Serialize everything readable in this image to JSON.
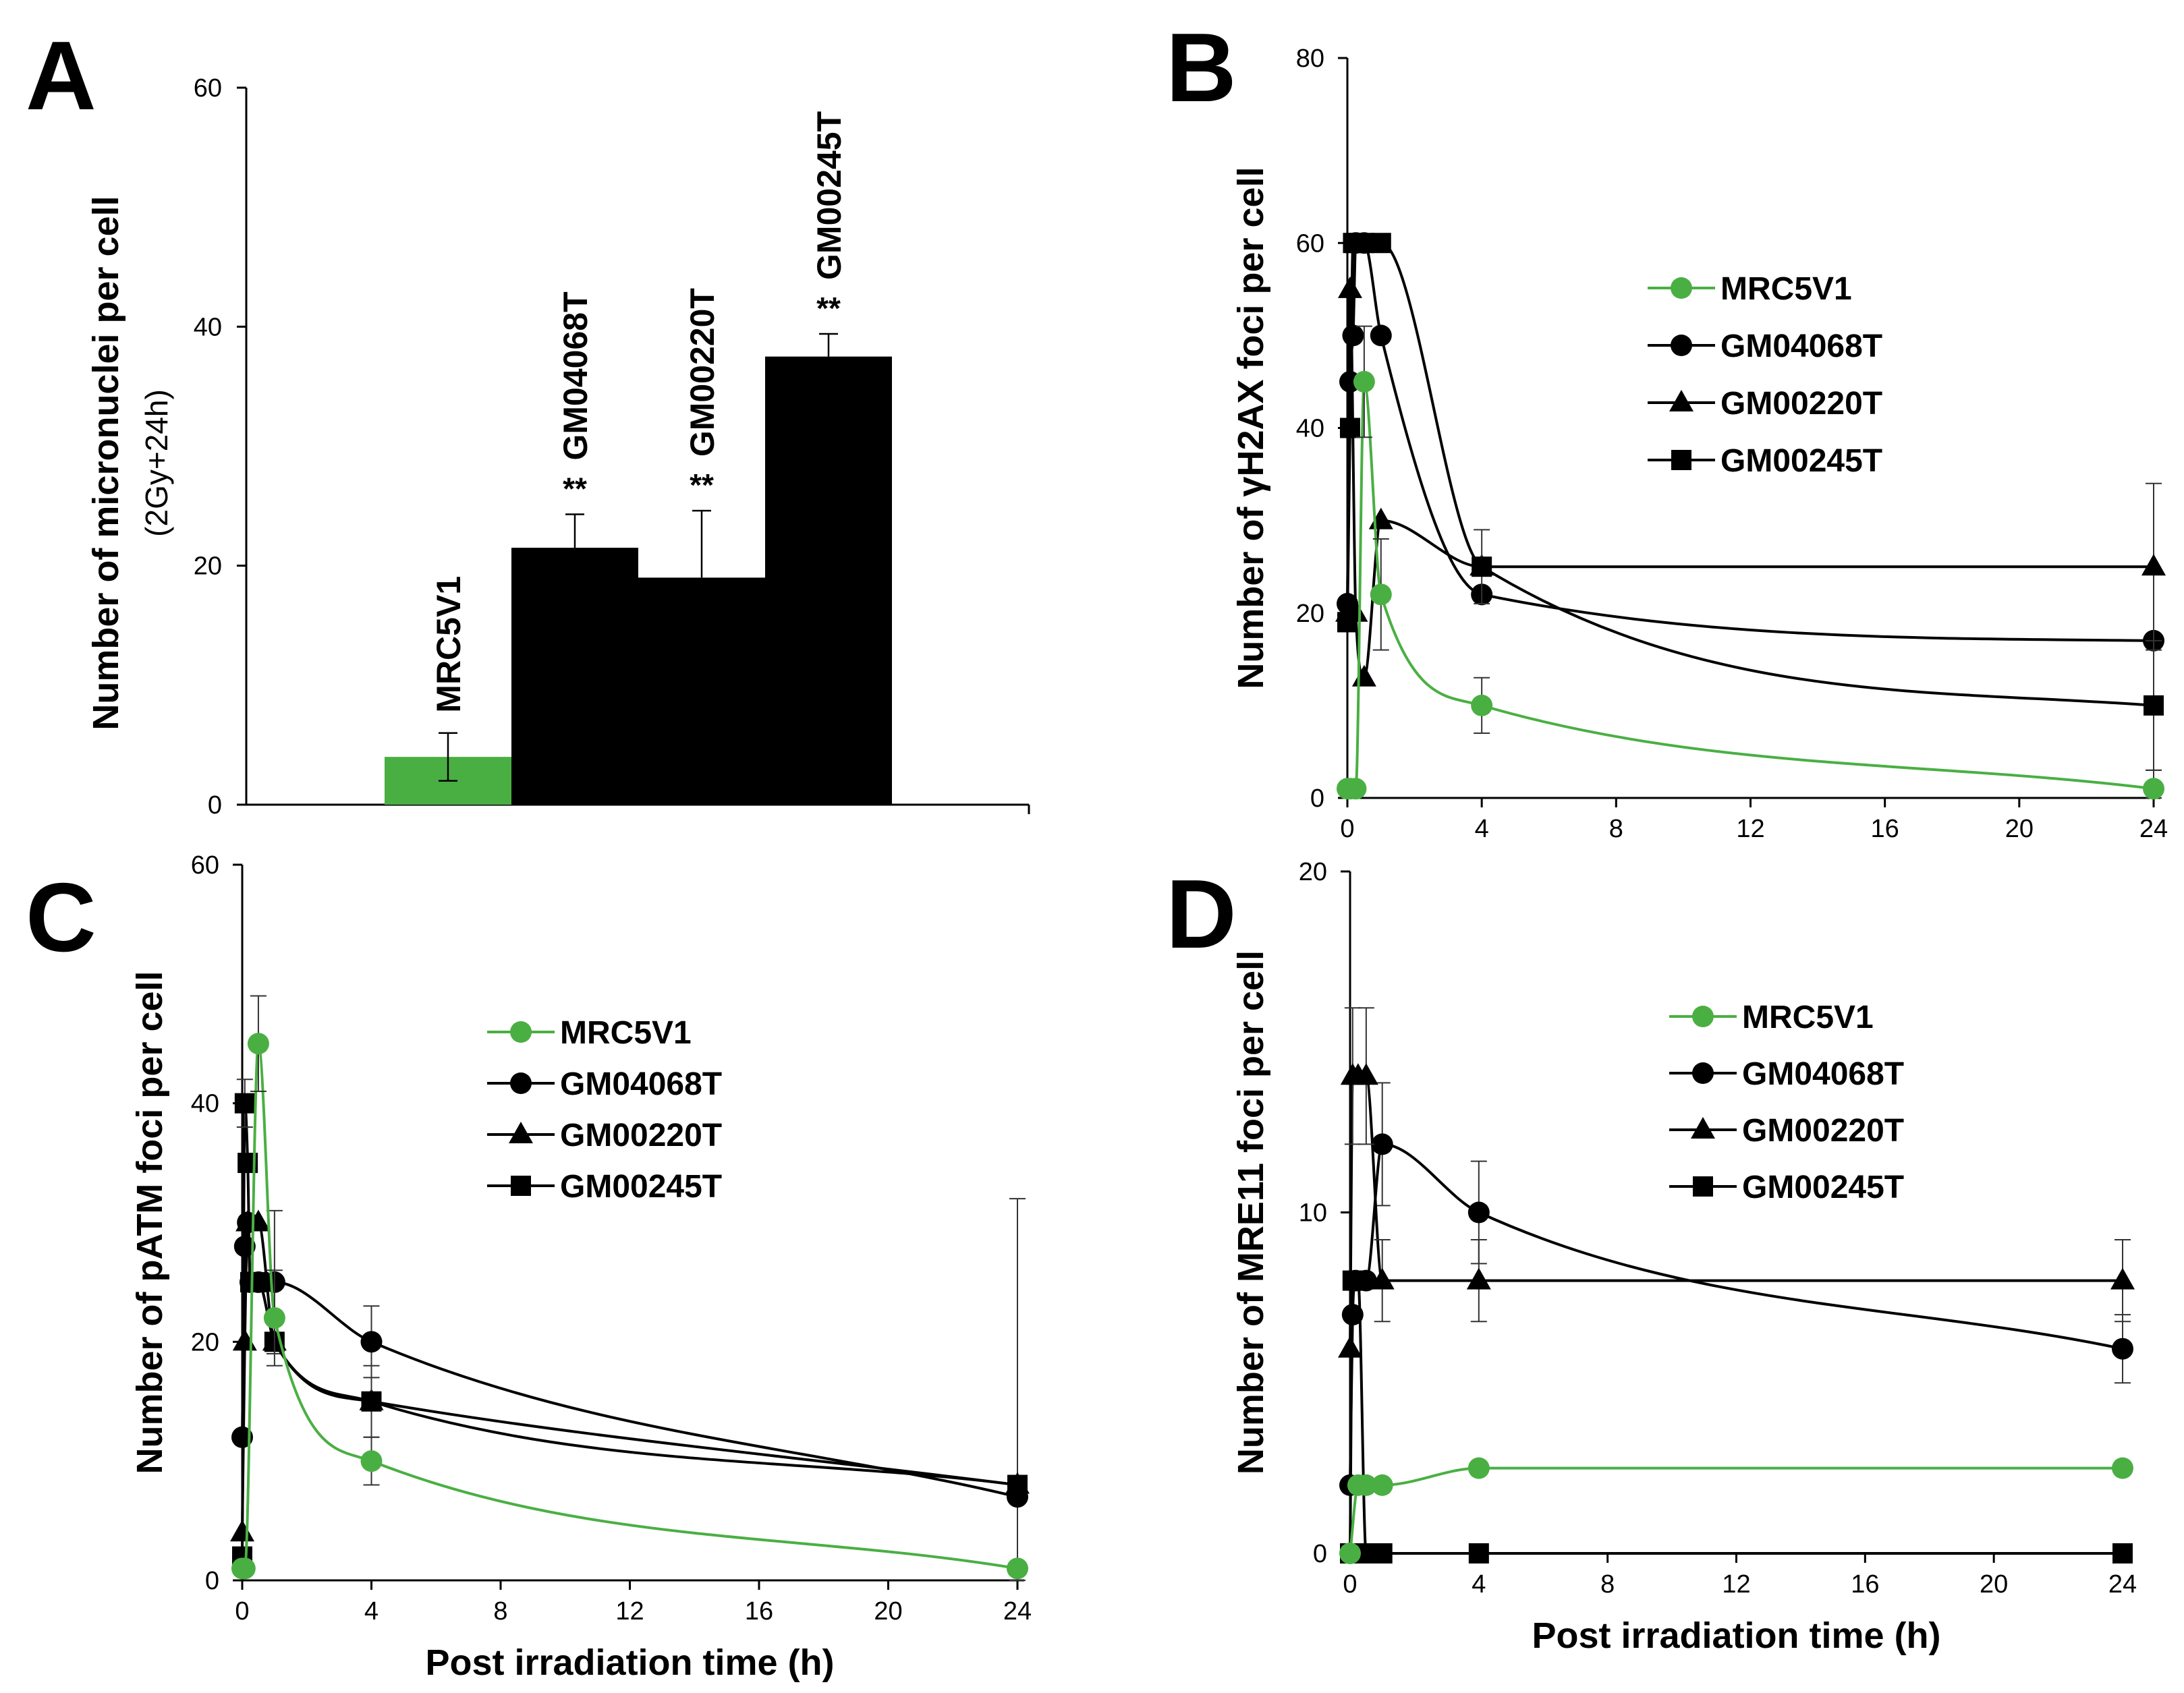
{
  "colors": {
    "green": "#4aaf43",
    "black": "#000000"
  },
  "chart_data": [
    {
      "panel": "A",
      "type": "bar",
      "categories": [
        "MRC5V1",
        "GM04068T",
        "GM00220T",
        "GM00245T"
      ],
      "values": [
        4.0,
        21.5,
        19.0,
        37.5
      ],
      "errors": [
        2.0,
        2.8,
        5.6,
        1.9
      ],
      "significance": [
        "",
        "**",
        "**",
        "**"
      ],
      "bar_colors": [
        "#4aaf43",
        "#000000",
        "#000000",
        "#000000"
      ],
      "ylabel": "Number of micronuclei per cell",
      "ylabel_sub": "(2Gy+24h)",
      "ylim": [
        0,
        60
      ],
      "yticks": [
        0,
        20,
        40,
        60
      ]
    },
    {
      "panel": "B",
      "type": "line",
      "ylabel": "Number of γH2AX foci per cell",
      "xlabel": "",
      "xlim": [
        0,
        24
      ],
      "ylim": [
        0,
        80
      ],
      "xticks": [
        0,
        4,
        8,
        12,
        16,
        20,
        24
      ],
      "yticks": [
        0,
        20,
        40,
        60,
        80
      ],
      "legend_position": "right-top",
      "series": [
        {
          "name": "MRC5V1",
          "marker": "circle",
          "color": "#4aaf43",
          "x": [
            0,
            0.08,
            0.25,
            0.5,
            1,
            4,
            24
          ],
          "y": [
            1,
            1,
            1,
            45,
            22,
            10,
            1
          ],
          "err": [
            0,
            0,
            0,
            6,
            6,
            3,
            2
          ]
        },
        {
          "name": "GM04068T",
          "marker": "circle",
          "color": "#000000",
          "x": [
            0,
            0.08,
            0.17,
            0.25,
            0.5,
            1,
            4,
            24
          ],
          "y": [
            21,
            45,
            50,
            60,
            60,
            50,
            22,
            17
          ],
          "err": [
            0,
            0,
            0,
            0,
            0,
            0,
            0,
            0
          ]
        },
        {
          "name": "GM00220T",
          "marker": "triangle",
          "color": "#000000",
          "x": [
            0,
            0.08,
            0.25,
            0.5,
            1,
            4,
            24
          ],
          "y": [
            20,
            55,
            20,
            13,
            30,
            25,
            25
          ],
          "err": [
            0,
            0,
            0,
            0,
            0,
            0,
            9
          ]
        },
        {
          "name": "GM00245T",
          "marker": "square",
          "color": "#000000",
          "x": [
            0,
            0.08,
            0.17,
            0.25,
            0.5,
            1,
            4,
            24
          ],
          "y": [
            19,
            40,
            60,
            60,
            60,
            60,
            25,
            10
          ],
          "err": [
            0,
            0,
            0,
            0,
            0,
            0,
            4,
            7
          ]
        }
      ]
    },
    {
      "panel": "C",
      "type": "line",
      "ylabel": "Number of pATM foci per cell",
      "xlabel": "Post irradiation time (h)",
      "xlim": [
        0,
        24
      ],
      "ylim": [
        0,
        60
      ],
      "xticks": [
        0,
        4,
        8,
        12,
        16,
        20,
        24
      ],
      "yticks": [
        0,
        20,
        40,
        60
      ],
      "legend_position": "center",
      "series": [
        {
          "name": "MRC5V1",
          "marker": "circle",
          "color": "#4aaf43",
          "x": [
            0,
            0.08,
            0.5,
            1,
            4,
            24
          ],
          "y": [
            1,
            1,
            45,
            22,
            10,
            1
          ],
          "err": [
            0,
            0,
            4,
            4,
            2,
            0
          ]
        },
        {
          "name": "GM04068T",
          "marker": "circle",
          "color": "#000000",
          "x": [
            0,
            0.08,
            0.17,
            0.25,
            0.5,
            1,
            4,
            24
          ],
          "y": [
            12,
            28,
            30,
            25,
            25,
            25,
            20,
            7
          ],
          "err": [
            0,
            0,
            0,
            0,
            0,
            6,
            3,
            25
          ]
        },
        {
          "name": "GM00220T",
          "marker": "triangle",
          "color": "#000000",
          "x": [
            0,
            0.08,
            0.17,
            0.5,
            1,
            4,
            24
          ],
          "y": [
            4,
            20,
            30,
            30,
            20,
            15,
            8
          ],
          "err": [
            0,
            0,
            0,
            0,
            0,
            0,
            0
          ]
        },
        {
          "name": "GM00245T",
          "marker": "square",
          "color": "#000000",
          "x": [
            0,
            0.08,
            0.17,
            0.25,
            0.5,
            1,
            4,
            24
          ],
          "y": [
            2,
            40,
            35,
            25,
            25,
            20,
            15,
            8
          ],
          "err": [
            0,
            2,
            0,
            0,
            0,
            0,
            3,
            0
          ]
        }
      ]
    },
    {
      "panel": "D",
      "type": "line",
      "ylabel": "Number of MRE11 foci per cell",
      "xlabel": "Post irradiation time (h)",
      "xlim": [
        0,
        24
      ],
      "ylim": [
        0,
        20
      ],
      "xticks": [
        0,
        4,
        8,
        12,
        16,
        20,
        24
      ],
      "yticks": [
        0,
        10,
        20
      ],
      "legend_position": "right-top",
      "series": [
        {
          "name": "MRC5V1",
          "marker": "circle",
          "color": "#4aaf43",
          "x": [
            0,
            0.25,
            0.5,
            1,
            4,
            24
          ],
          "y": [
            0,
            2,
            2,
            2,
            2.5,
            2.5
          ],
          "err": [
            0,
            0,
            0,
            0,
            0,
            0
          ]
        },
        {
          "name": "GM04068T",
          "marker": "circle",
          "color": "#000000",
          "x": [
            0,
            0.08,
            0.17,
            0.5,
            1,
            4,
            24
          ],
          "y": [
            2,
            7,
            8,
            8,
            12,
            10,
            6
          ],
          "err": [
            0,
            0,
            0,
            0,
            1.8,
            1.5,
            1
          ]
        },
        {
          "name": "GM00220T",
          "marker": "triangle",
          "color": "#000000",
          "x": [
            0,
            0.08,
            0.25,
            0.5,
            1,
            4,
            24
          ],
          "y": [
            6,
            14,
            14,
            14,
            8,
            8,
            8
          ],
          "err": [
            0,
            2,
            0,
            2,
            1.2,
            1.2,
            1.2
          ]
        },
        {
          "name": "GM00245T",
          "marker": "square",
          "color": "#000000",
          "x": [
            0,
            0.08,
            0.25,
            0.5,
            1,
            4,
            24
          ],
          "y": [
            0,
            8,
            8,
            0,
            0,
            0,
            0
          ],
          "err": [
            0,
            0,
            0,
            0,
            0,
            0,
            0
          ]
        }
      ]
    }
  ]
}
